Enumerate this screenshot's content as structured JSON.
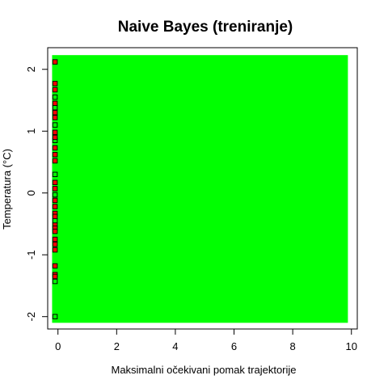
{
  "chart_data": {
    "type": "scatter",
    "title": "Naive Bayes (treniranje)",
    "xlabel": "Maksimalni očekivani pomak trajektorije",
    "ylabel": "Temperatura (°C)",
    "xlim": [
      -0.35,
      10.2
    ],
    "ylim": [
      -2.2,
      2.35
    ],
    "x_ticks": [
      0,
      2,
      4,
      6,
      8,
      10
    ],
    "y_ticks": [
      -2,
      -1,
      0,
      1,
      2
    ],
    "grid": false,
    "legend": "none",
    "decision_region": {
      "class": "green",
      "color": "#00ff00",
      "x": [
        -0.2,
        9.88
      ],
      "y": [
        -2.1,
        2.23
      ]
    },
    "points_class_red": {
      "color": "#ff0000",
      "points": [
        [
          -0.1,
          2.12
        ],
        [
          -0.1,
          1.77
        ],
        [
          -0.1,
          1.67
        ],
        [
          -0.1,
          1.45
        ],
        [
          -0.1,
          1.3
        ],
        [
          -0.1,
          1.22
        ],
        [
          -0.1,
          0.98
        ],
        [
          -0.1,
          0.9
        ],
        [
          -0.1,
          0.73
        ],
        [
          -0.1,
          0.62
        ],
        [
          -0.1,
          0.52
        ],
        [
          -0.1,
          0.17
        ],
        [
          -0.1,
          0.07
        ],
        [
          -0.1,
          -0.12
        ],
        [
          -0.1,
          -0.22
        ],
        [
          -0.1,
          -0.33
        ],
        [
          -0.1,
          -0.38
        ],
        [
          -0.1,
          -0.52
        ],
        [
          -0.1,
          -0.57
        ],
        [
          -0.1,
          -0.62
        ],
        [
          -0.1,
          -0.75
        ],
        [
          -0.1,
          -0.83
        ],
        [
          -0.1,
          -0.92
        ],
        [
          -0.1,
          -1.18
        ],
        [
          -0.1,
          -1.32
        ],
        [
          -0.1,
          -1.35
        ]
      ]
    },
    "points_class_green": {
      "color": "#00ff00",
      "points": [
        [
          -0.1,
          1.55
        ],
        [
          -0.1,
          1.38
        ],
        [
          -0.1,
          1.1
        ],
        [
          -0.1,
          0.85
        ],
        [
          -0.1,
          0.3
        ],
        [
          -0.1,
          -0.03
        ],
        [
          -0.1,
          -0.45
        ],
        [
          -0.1,
          -1.43
        ],
        [
          -0.1,
          -2.0
        ]
      ]
    }
  }
}
